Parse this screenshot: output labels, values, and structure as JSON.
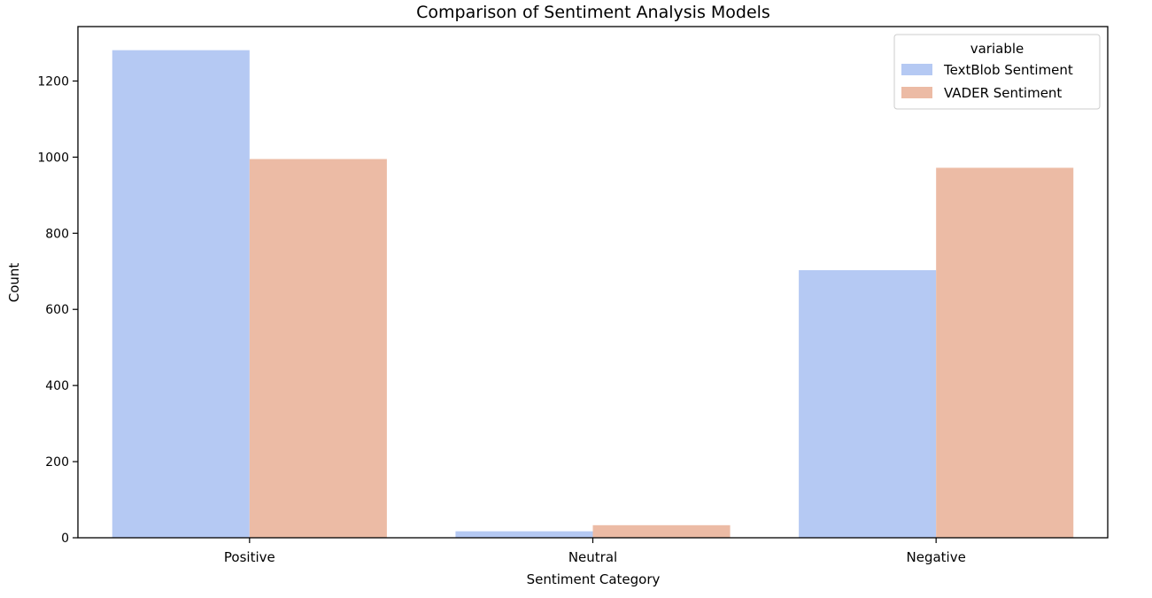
{
  "chart_data": {
    "type": "bar",
    "title": "Comparison of Sentiment Analysis Models",
    "xlabel": "Sentiment Category",
    "ylabel": "Count",
    "categories": [
      "Positive",
      "Neutral",
      "Negative"
    ],
    "series": [
      {
        "name": "TextBlob Sentiment",
        "values": [
          1281,
          17,
          703
        ],
        "color": "#b5c9f3"
      },
      {
        "name": "VADER Sentiment",
        "values": [
          995,
          33,
          972
        ],
        "color": "#ecbba5"
      }
    ],
    "ylim": [
      0,
      1343
    ],
    "yticks": [
      0,
      200,
      400,
      600,
      800,
      1000,
      1200
    ],
    "grid": false,
    "legend": {
      "title": "variable",
      "placement": "top-right"
    }
  }
}
